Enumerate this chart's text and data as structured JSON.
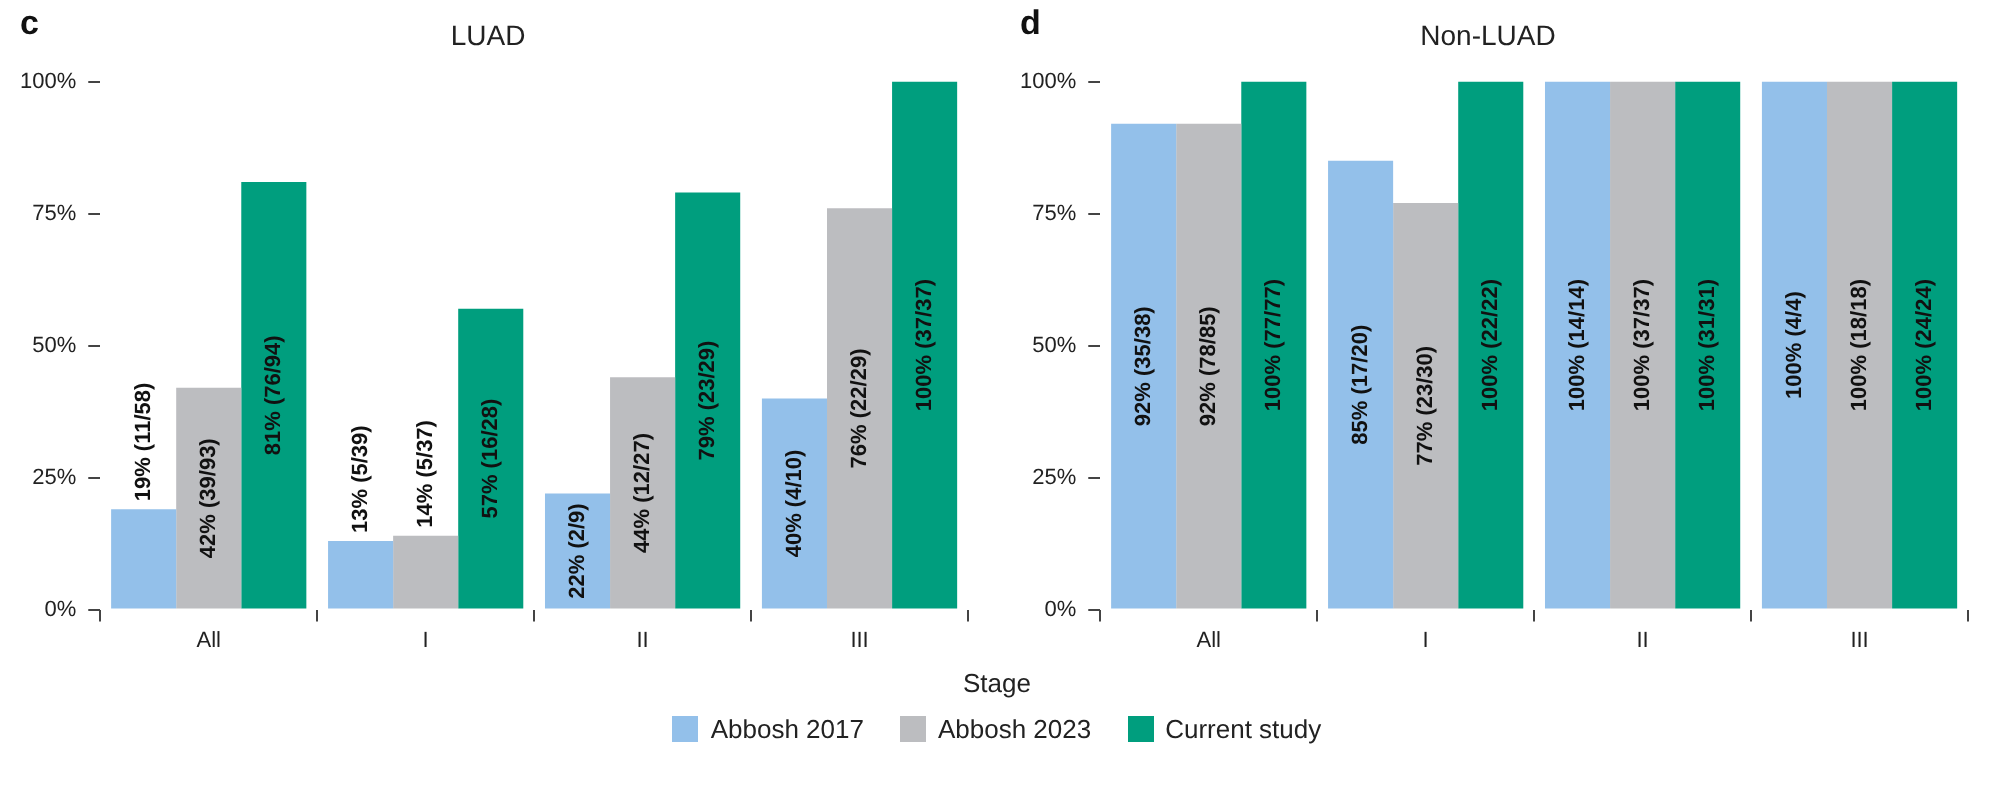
{
  "chart_data": [
    {
      "type": "bar",
      "title": "LUAD",
      "xlabel": "Stage",
      "annotations": [
        "c"
      ],
      "categories": [
        "All",
        "I",
        "II",
        "III"
      ],
      "ylim": [
        0,
        100
      ],
      "yticks": [
        {
          "value": 0,
          "label": "0%"
        },
        {
          "value": 25,
          "label": "25%"
        },
        {
          "value": 50,
          "label": "50%"
        },
        {
          "value": 75,
          "label": "75%"
        },
        {
          "value": 100,
          "label": "100%"
        }
      ],
      "grid": false,
      "legend": "bottom",
      "series": [
        {
          "name": "Abbosh 2017",
          "color": "#93c0ea",
          "values": [
            19,
            13,
            22,
            40
          ],
          "value_labels": [
            "19% (11/58)",
            "13% (5/39)",
            "22% (2/9)",
            "40% (4/10)"
          ]
        },
        {
          "name": "Abbosh 2023",
          "color": "#bcbdc0",
          "values": [
            42,
            14,
            44,
            76
          ],
          "value_labels": [
            "42% (39/93)",
            "14% (5/37)",
            "44% (12/27)",
            "76% (22/29)"
          ]
        },
        {
          "name": "Current study",
          "color": "#009e7e",
          "values": [
            81,
            57,
            79,
            100
          ],
          "value_labels": [
            "81% (76/94)",
            "57% (16/28)",
            "79% (23/29)",
            "100% (37/37)"
          ]
        }
      ]
    },
    {
      "type": "bar",
      "title": "Non-LUAD",
      "annotations": [
        "d"
      ],
      "categories": [
        "All",
        "I",
        "II",
        "III"
      ],
      "ylim": [
        0,
        100
      ],
      "yticks": [
        {
          "value": 0,
          "label": "0%"
        },
        {
          "value": 25,
          "label": "25%"
        },
        {
          "value": 50,
          "label": "50%"
        },
        {
          "value": 75,
          "label": "75%"
        },
        {
          "value": 100,
          "label": "100%"
        }
      ],
      "grid": false,
      "legend": "bottom",
      "series": [
        {
          "name": "Abbosh 2017",
          "color": "#93c0ea",
          "values": [
            92,
            85,
            100,
            100
          ],
          "value_labels": [
            "92% (35/38)",
            "85% (17/20)",
            "100% (14/14)",
            "100% (4/4)"
          ]
        },
        {
          "name": "Abbosh 2023",
          "color": "#bcbdc0",
          "values": [
            92,
            77,
            100,
            100
          ],
          "value_labels": [
            "92% (78/85)",
            "77% (23/30)",
            "100% (37/37)",
            "100% (18/18)"
          ]
        },
        {
          "name": "Current study",
          "color": "#009e7e",
          "values": [
            100,
            100,
            100,
            100
          ],
          "value_labels": [
            "100% (77/77)",
            "100% (22/22)",
            "100% (31/31)",
            "100% (24/24)"
          ]
        }
      ]
    }
  ]
}
